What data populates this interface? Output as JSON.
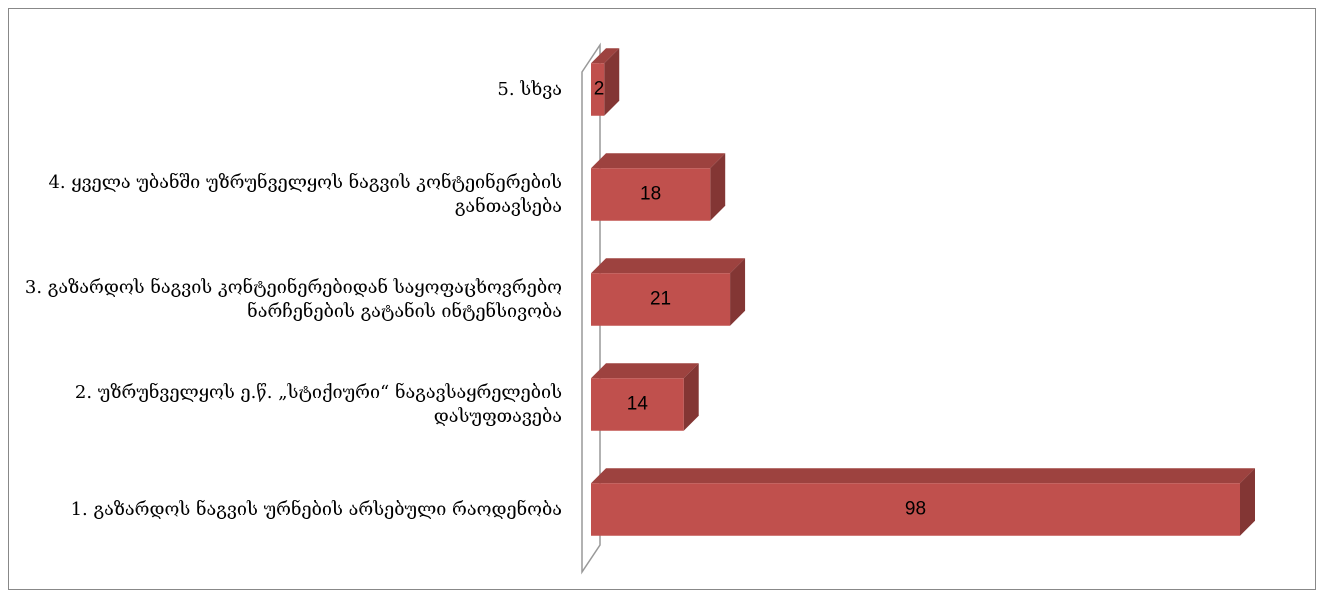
{
  "chart_data": {
    "type": "bar",
    "orientation": "horizontal",
    "three_d": true,
    "categories": [
      "1. გაზარდოს ნაგვის ურნების არსებული რაოდენობა",
      "2. უზრუნველყოს ე.წ. „სტიქიური“ ნაგავსაყრელების დასუფთავება",
      "3. გაზარდოს ნაგვის კონტეინერებიდან საყოფაცხოვრებო ნარჩენების გატანის ინტენსივობა",
      "4. ყველა უბანში უზრუნველყოს ნაგვის კონტეინერების განთავსება",
      "5. სხვა"
    ],
    "values": [
      98,
      14,
      21,
      18,
      2
    ],
    "color": "#c0504d"
  }
}
